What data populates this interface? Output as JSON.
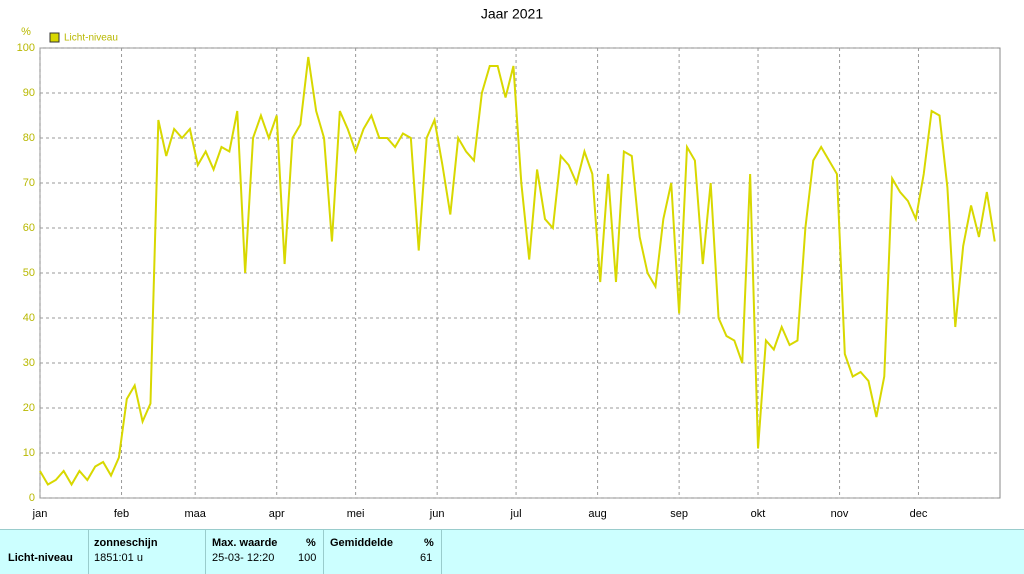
{
  "chart_data": {
    "type": "line",
    "title": "Jaar 2021",
    "y_label": "%",
    "x": [
      0,
      3,
      6,
      9,
      12,
      15,
      18,
      21,
      24,
      27,
      30,
      33,
      36,
      39,
      42,
      45,
      48,
      51,
      54,
      57,
      60,
      63,
      66,
      69,
      72,
      75,
      78,
      81,
      84,
      87,
      90,
      93,
      96,
      99,
      102,
      105,
      108,
      111,
      114,
      117,
      120,
      123,
      126,
      129,
      132,
      135,
      138,
      141,
      144,
      147,
      150,
      153,
      156,
      159,
      162,
      165,
      168,
      171,
      174,
      177,
      180,
      183,
      186,
      189,
      192,
      195,
      198,
      201,
      204,
      207,
      210,
      213,
      216,
      219,
      222,
      225,
      228,
      231,
      234,
      237,
      240,
      243,
      246,
      249,
      252,
      255,
      258,
      261,
      264,
      267,
      270,
      273,
      276,
      279,
      282,
      285,
      288,
      291,
      294,
      297,
      300,
      303,
      306,
      309,
      312,
      315,
      318,
      321,
      324,
      327,
      330,
      333,
      336,
      339,
      342,
      345,
      348,
      351,
      354,
      357,
      360,
      363
    ],
    "series": [
      {
        "name": "Licht-niveau",
        "color": "#d8d800",
        "values": [
          6,
          3,
          4,
          6,
          3,
          6,
          4,
          7,
          8,
          5,
          9,
          22,
          25,
          17,
          21,
          84,
          76,
          82,
          80,
          82,
          74,
          77,
          73,
          78,
          77,
          86,
          50,
          80,
          85,
          80,
          85,
          52,
          80,
          83,
          98,
          86,
          80,
          57,
          86,
          82,
          77,
          82,
          85,
          80,
          80,
          78,
          81,
          80,
          55,
          80,
          84,
          74,
          63,
          80,
          77,
          75,
          90,
          96,
          96,
          89,
          96,
          70,
          53,
          73,
          62,
          60,
          76,
          74,
          70,
          77,
          72,
          48,
          72,
          48,
          77,
          76,
          58,
          50,
          47,
          62,
          70,
          41,
          78,
          75,
          52,
          70,
          40,
          36,
          35,
          30,
          72,
          11,
          35,
          33,
          38,
          34,
          35,
          60,
          75,
          78,
          75,
          72,
          32,
          27,
          28,
          26,
          18,
          27,
          71,
          68,
          66,
          62,
          72,
          86,
          85,
          69,
          38,
          56,
          65,
          58,
          68,
          57
        ]
      }
    ],
    "xlim": [
      0,
      365
    ],
    "xticks": [
      {
        "value": 0,
        "label": "jan"
      },
      {
        "value": 31,
        "label": "feb"
      },
      {
        "value": 59,
        "label": "maa"
      },
      {
        "value": 90,
        "label": "apr"
      },
      {
        "value": 120,
        "label": "mei"
      },
      {
        "value": 151,
        "label": "jun"
      },
      {
        "value": 181,
        "label": "jul"
      },
      {
        "value": 212,
        "label": "aug"
      },
      {
        "value": 243,
        "label": "sep"
      },
      {
        "value": 273,
        "label": "okt"
      },
      {
        "value": 304,
        "label": "nov"
      },
      {
        "value": 334,
        "label": "dec"
      }
    ],
    "ylim": [
      0,
      100
    ],
    "yticks": [
      0,
      10,
      20,
      30,
      40,
      50,
      60,
      70,
      80,
      90,
      100
    ],
    "grid": true
  },
  "table": {
    "row_label": "Licht-niveau",
    "columns": [
      {
        "header": "zonneschijn",
        "value": "1851:01 u"
      },
      {
        "header": "Max. waarde",
        "unit": "%",
        "value": "25-03- 12:20",
        "value2": 100
      },
      {
        "header": "Gemiddelde",
        "unit": "%",
        "value2": 61
      }
    ]
  }
}
